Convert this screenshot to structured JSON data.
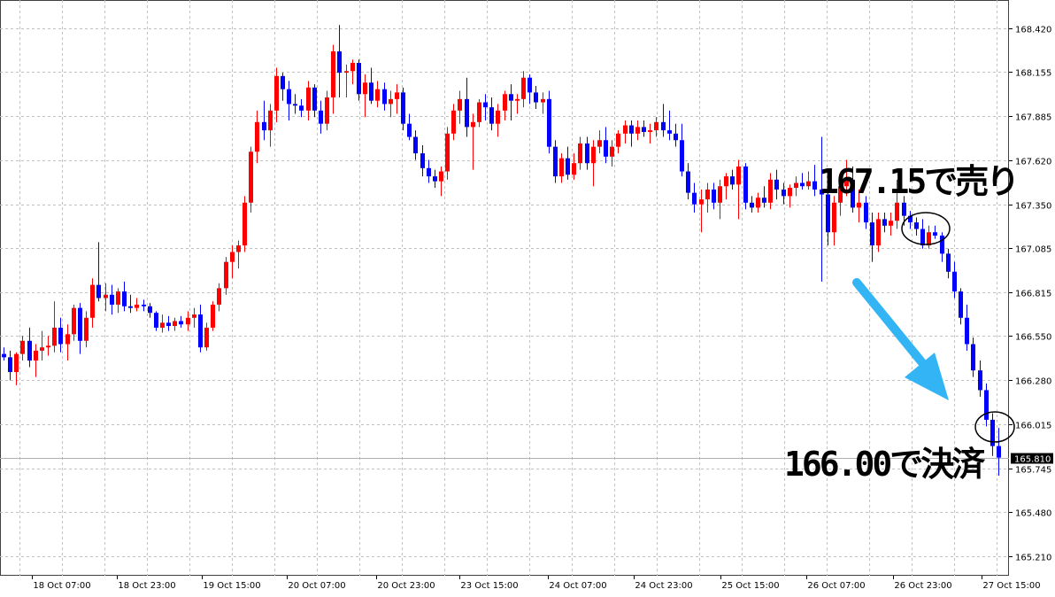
{
  "chart_data": {
    "type": "candlestick",
    "price_axis": {
      "ticks": [
        168.42,
        168.155,
        167.885,
        167.62,
        167.35,
        167.085,
        166.815,
        166.55,
        166.28,
        166.015,
        165.745,
        165.48,
        165.21
      ],
      "tick_labels": [
        "168.420",
        "168.155",
        "167.885",
        "167.620",
        "167.350",
        "167.085",
        "166.815",
        "166.550",
        "166.280",
        "166.015",
        "165.745",
        "165.480",
        "165.210"
      ],
      "range": [
        165.08,
        168.55
      ],
      "current_price": 165.81,
      "current_price_label": "165.810"
    },
    "time_axis": {
      "labels": [
        "18 Oct 07:00",
        "18 Oct 23:00",
        "19 Oct 15:00",
        "20 Oct 07:00",
        "20 Oct 23:00",
        "23 Oct 15:00",
        "24 Oct 07:00",
        "24 Oct 23:00",
        "25 Oct 15:00",
        "26 Oct 07:00",
        "26 Oct 23:00",
        "27 Oct 15:00"
      ]
    },
    "grid": true,
    "colors": {
      "up": "#ff0000",
      "down": "#0000ff",
      "doji": "#00cc00",
      "grid": "#c0c0c0",
      "current_line": "#b0b0b0",
      "arrow": "#33b5f5"
    },
    "candles": [
      [
        166.44,
        166.48,
        166.4,
        166.42
      ],
      [
        166.42,
        166.46,
        166.28,
        166.33
      ],
      [
        166.33,
        166.45,
        166.25,
        166.44
      ],
      [
        166.44,
        166.55,
        166.4,
        166.52
      ],
      [
        166.52,
        166.6,
        166.36,
        166.4
      ],
      [
        166.4,
        166.5,
        166.3,
        166.46
      ],
      [
        166.46,
        166.58,
        166.4,
        166.48
      ],
      [
        166.48,
        166.55,
        166.43,
        166.49
      ],
      [
        166.49,
        166.76,
        166.45,
        166.6
      ],
      [
        166.6,
        166.66,
        166.45,
        166.5
      ],
      [
        166.5,
        166.62,
        166.4,
        166.56
      ],
      [
        166.56,
        166.74,
        166.52,
        166.72
      ],
      [
        166.72,
        166.75,
        166.44,
        166.52
      ],
      [
        166.52,
        166.7,
        166.48,
        166.66
      ],
      [
        166.66,
        166.9,
        166.6,
        166.86
      ],
      [
        166.86,
        167.12,
        166.76,
        166.78
      ],
      [
        166.78,
        166.87,
        166.7,
        166.8
      ],
      [
        166.8,
        166.86,
        166.68,
        166.74
      ],
      [
        166.74,
        166.84,
        166.69,
        166.82
      ],
      [
        166.82,
        166.88,
        166.7,
        166.73
      ],
      [
        166.73,
        166.8,
        166.69,
        166.72
      ],
      [
        166.72,
        166.78,
        166.7,
        166.74
      ],
      [
        166.74,
        166.77,
        166.7,
        166.73
      ],
      [
        166.73,
        166.75,
        166.66,
        166.69
      ],
      [
        166.69,
        166.7,
        166.58,
        166.6
      ],
      [
        166.6,
        166.68,
        166.57,
        166.63
      ],
      [
        166.63,
        166.67,
        166.58,
        166.61
      ],
      [
        166.61,
        166.66,
        166.58,
        166.64
      ],
      [
        166.64,
        166.67,
        166.6,
        166.62
      ],
      [
        166.62,
        166.7,
        166.58,
        166.66
      ],
      [
        166.66,
        166.72,
        166.6,
        166.68
      ],
      [
        166.68,
        166.74,
        166.45,
        166.48
      ],
      [
        166.48,
        166.63,
        166.46,
        166.6
      ],
      [
        166.6,
        166.76,
        166.58,
        166.74
      ],
      [
        166.74,
        166.87,
        166.7,
        166.84
      ],
      [
        166.84,
        167.03,
        166.8,
        167.0
      ],
      [
        167.0,
        167.1,
        166.9,
        167.06
      ],
      [
        167.06,
        167.13,
        166.96,
        167.1
      ],
      [
        167.1,
        167.4,
        167.06,
        167.36
      ],
      [
        167.36,
        167.7,
        167.3,
        167.67
      ],
      [
        167.67,
        167.92,
        167.6,
        167.85
      ],
      [
        167.85,
        167.98,
        167.74,
        167.8
      ],
      [
        167.8,
        167.96,
        167.7,
        167.92
      ],
      [
        167.92,
        168.18,
        167.85,
        168.13
      ],
      [
        168.13,
        168.15,
        167.98,
        168.05
      ],
      [
        168.05,
        168.1,
        167.86,
        167.96
      ],
      [
        167.96,
        168.02,
        167.9,
        167.95
      ],
      [
        167.95,
        167.99,
        167.88,
        167.92
      ],
      [
        167.92,
        168.1,
        167.86,
        168.06
      ],
      [
        168.06,
        168.08,
        167.88,
        167.92
      ],
      [
        167.92,
        167.98,
        167.78,
        167.84
      ],
      [
        167.84,
        168.04,
        167.8,
        168.0
      ],
      [
        168.0,
        168.32,
        167.9,
        168.28
      ],
      [
        168.28,
        168.44,
        168.0,
        168.15
      ],
      [
        168.15,
        168.2,
        168.0,
        168.16
      ],
      [
        168.16,
        168.23,
        168.08,
        168.21
      ],
      [
        168.21,
        168.23,
        167.98,
        168.02
      ],
      [
        168.02,
        168.14,
        167.88,
        168.09
      ],
      [
        168.09,
        168.18,
        167.96,
        167.98
      ],
      [
        167.98,
        168.1,
        167.94,
        168.05
      ],
      [
        168.05,
        168.09,
        167.92,
        167.96
      ],
      [
        167.96,
        168.04,
        167.88,
        167.99
      ],
      [
        167.99,
        168.08,
        167.9,
        168.03
      ],
      [
        168.03,
        168.06,
        167.8,
        167.84
      ],
      [
        167.84,
        167.9,
        167.74,
        167.76
      ],
      [
        167.76,
        167.8,
        167.62,
        167.66
      ],
      [
        167.66,
        167.71,
        167.52,
        167.57
      ],
      [
        167.57,
        167.62,
        167.48,
        167.52
      ],
      [
        167.52,
        167.56,
        167.45,
        167.49
      ],
      [
        167.49,
        167.58,
        167.4,
        167.55
      ],
      [
        167.55,
        167.82,
        167.5,
        167.78
      ],
      [
        167.78,
        167.96,
        167.74,
        167.92
      ],
      [
        167.92,
        168.04,
        167.84,
        167.99
      ],
      [
        167.99,
        168.12,
        167.76,
        167.82
      ],
      [
        167.82,
        167.9,
        167.56,
        167.85
      ],
      [
        167.85,
        167.99,
        167.82,
        167.97
      ],
      [
        167.97,
        168.02,
        167.86,
        167.94
      ],
      [
        167.94,
        168.0,
        167.8,
        167.84
      ],
      [
        167.84,
        167.96,
        167.76,
        167.92
      ],
      [
        167.92,
        168.04,
        167.86,
        168.02
      ],
      [
        168.02,
        168.08,
        167.86,
        167.98
      ],
      [
        167.98,
        168.02,
        167.9,
        167.99
      ],
      [
        167.99,
        168.16,
        167.94,
        168.12
      ],
      [
        168.12,
        168.14,
        167.96,
        168.03
      ],
      [
        168.03,
        168.07,
        167.93,
        167.97
      ],
      [
        167.97,
        168.03,
        167.9,
        167.99
      ],
      [
        167.99,
        168.04,
        167.66,
        167.7
      ],
      [
        167.7,
        167.74,
        167.48,
        167.52
      ],
      [
        167.52,
        167.66,
        167.48,
        167.63
      ],
      [
        167.63,
        167.7,
        167.5,
        167.53
      ],
      [
        167.53,
        167.66,
        167.5,
        167.6
      ],
      [
        167.6,
        167.76,
        167.56,
        167.72
      ],
      [
        167.72,
        167.76,
        167.56,
        167.6
      ],
      [
        167.6,
        167.74,
        167.46,
        167.7
      ],
      [
        167.7,
        167.8,
        167.66,
        167.74
      ],
      [
        167.74,
        167.82,
        167.6,
        167.64
      ],
      [
        167.64,
        167.74,
        167.58,
        167.7
      ],
      [
        167.7,
        167.8,
        167.66,
        167.78
      ],
      [
        167.78,
        167.86,
        167.72,
        167.83
      ],
      [
        167.83,
        167.86,
        167.7,
        167.78
      ],
      [
        167.78,
        167.86,
        167.74,
        167.82
      ],
      [
        167.82,
        167.86,
        167.76,
        167.79
      ],
      [
        167.79,
        167.84,
        167.72,
        167.8
      ],
      [
        167.8,
        167.88,
        167.76,
        167.85
      ],
      [
        167.85,
        167.96,
        167.76,
        167.8
      ],
      [
        167.8,
        167.92,
        167.74,
        167.78
      ],
      [
        167.78,
        167.84,
        167.7,
        167.74
      ],
      [
        167.74,
        167.84,
        167.52,
        167.55
      ],
      [
        167.55,
        167.6,
        167.38,
        167.42
      ],
      [
        167.42,
        167.48,
        167.3,
        167.35
      ],
      [
        167.35,
        167.44,
        167.18,
        167.38
      ],
      [
        167.38,
        167.48,
        167.3,
        167.44
      ],
      [
        167.44,
        167.48,
        167.32,
        167.36
      ],
      [
        167.36,
        167.5,
        167.26,
        167.46
      ],
      [
        167.46,
        167.54,
        167.38,
        167.52
      ],
      [
        167.52,
        167.56,
        167.44,
        167.47
      ],
      [
        167.47,
        167.62,
        167.26,
        167.58
      ],
      [
        167.58,
        167.6,
        167.32,
        167.36
      ],
      [
        167.36,
        167.4,
        167.3,
        167.33
      ],
      [
        167.33,
        167.42,
        167.3,
        167.39
      ],
      [
        167.39,
        167.46,
        167.33,
        167.36
      ],
      [
        167.36,
        167.54,
        167.32,
        167.5
      ],
      [
        167.5,
        167.56,
        167.38,
        167.44
      ],
      [
        167.44,
        167.48,
        167.35,
        167.4
      ],
      [
        167.4,
        167.47,
        167.33,
        167.45
      ],
      [
        167.45,
        167.52,
        167.4,
        167.48
      ],
      [
        167.48,
        167.54,
        167.44,
        167.46
      ],
      [
        167.46,
        167.55,
        167.44,
        167.49
      ],
      [
        167.49,
        167.59,
        167.4,
        167.44
      ],
      [
        167.44,
        167.76,
        166.88,
        167.41
      ],
      [
        167.41,
        167.46,
        167.1,
        167.18
      ],
      [
        167.18,
        167.4,
        167.1,
        167.36
      ],
      [
        167.36,
        167.5,
        167.28,
        167.46
      ],
      [
        167.46,
        167.62,
        167.4,
        167.5
      ],
      [
        167.5,
        167.58,
        167.3,
        167.33
      ],
      [
        167.33,
        167.44,
        167.24,
        167.36
      ],
      [
        167.36,
        167.4,
        167.2,
        167.24
      ],
      [
        167.24,
        167.3,
        167.0,
        167.1
      ],
      [
        167.1,
        167.3,
        167.06,
        167.26
      ],
      [
        167.26,
        167.3,
        167.18,
        167.22
      ],
      [
        167.22,
        167.3,
        167.16,
        167.25
      ],
      [
        167.25,
        167.5,
        167.2,
        167.36
      ],
      [
        167.36,
        167.4,
        167.22,
        167.28
      ],
      [
        167.28,
        167.31,
        167.2,
        167.24
      ],
      [
        167.24,
        167.27,
        167.16,
        167.2
      ],
      [
        167.2,
        167.26,
        167.08,
        167.1
      ],
      [
        167.1,
        167.22,
        167.08,
        167.18
      ],
      [
        167.18,
        167.22,
        167.14,
        167.16
      ],
      [
        167.16,
        167.18,
        167.0,
        167.05
      ],
      [
        167.05,
        167.08,
        166.9,
        166.94
      ],
      [
        166.94,
        167.0,
        166.78,
        166.82
      ],
      [
        166.82,
        166.84,
        166.62,
        166.66
      ],
      [
        166.66,
        166.74,
        166.46,
        166.5
      ],
      [
        166.5,
        166.54,
        166.3,
        166.34
      ],
      [
        166.34,
        166.4,
        166.18,
        166.22
      ],
      [
        166.22,
        166.26,
        166.0,
        166.04
      ],
      [
        166.04,
        166.08,
        165.82,
        165.88
      ],
      [
        165.88,
        165.99,
        165.7,
        165.81
      ]
    ]
  },
  "annotations": {
    "sell_label": "167.15で売り",
    "close_label": "166.00で決済"
  }
}
